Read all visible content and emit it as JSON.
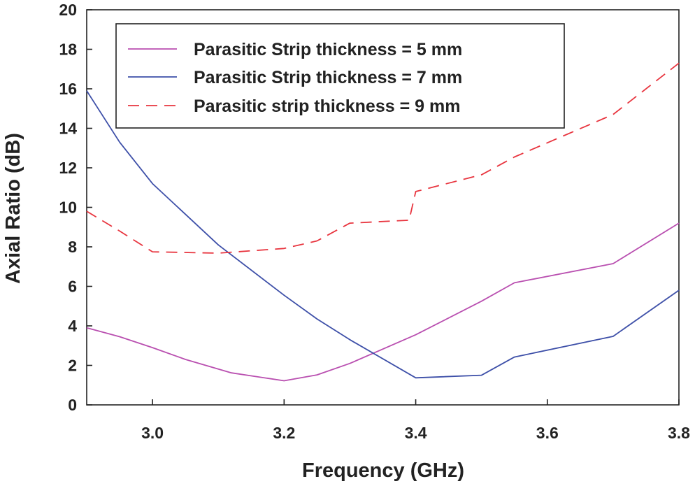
{
  "chart_data": {
    "type": "line",
    "title": "",
    "xlabel": "Frequency (GHz)",
    "ylabel": "Axial Ratio (dB)",
    "xlim": [
      2.9,
      3.8
    ],
    "ylim": [
      0,
      20
    ],
    "x_ticks": [
      "3.0",
      "3.2",
      "3.4",
      "3.6",
      "3.8"
    ],
    "x_tick_values": [
      3.0,
      3.2,
      3.4,
      3.6,
      3.8
    ],
    "y_ticks": [
      "0",
      "2",
      "4",
      "6",
      "8",
      "10",
      "12",
      "14",
      "16",
      "18",
      "20"
    ],
    "y_tick_values": [
      0,
      2,
      4,
      6,
      8,
      10,
      12,
      14,
      16,
      18,
      20
    ],
    "grid": false,
    "legend_position": "top",
    "series": [
      {
        "name": "Parasitic Strip thickness = 5 mm",
        "color": "#b94fb0",
        "dash": "solid",
        "x": [
          2.9,
          2.95,
          3.0,
          3.05,
          3.12,
          3.2,
          3.25,
          3.3,
          3.4,
          3.5,
          3.55,
          3.7,
          3.8
        ],
        "y": [
          3.9,
          3.45,
          2.9,
          2.3,
          1.62,
          1.22,
          1.52,
          2.1,
          3.55,
          5.25,
          6.18,
          7.15,
          9.2
        ]
      },
      {
        "name": "Parasitic Strip thickness = 7 mm",
        "color": "#3d4fa8",
        "dash": "solid",
        "x": [
          2.9,
          2.95,
          3.0,
          3.1,
          3.2,
          3.25,
          3.3,
          3.4,
          3.5,
          3.55,
          3.7,
          3.8
        ],
        "y": [
          15.9,
          13.3,
          11.2,
          8.1,
          5.55,
          4.35,
          3.3,
          1.37,
          1.5,
          2.42,
          3.47,
          5.8
        ]
      },
      {
        "name": "Parasitic strip thickness = 9 mm",
        "color": "#e8353f",
        "dash": "dashed",
        "x": [
          2.9,
          2.95,
          3.0,
          3.1,
          3.2,
          3.25,
          3.3,
          3.39,
          3.4,
          3.5,
          3.55,
          3.7,
          3.8
        ],
        "y": [
          9.8,
          8.8,
          7.75,
          7.68,
          7.92,
          8.3,
          9.2,
          9.35,
          10.8,
          11.65,
          12.55,
          14.7,
          17.3
        ]
      }
    ]
  }
}
